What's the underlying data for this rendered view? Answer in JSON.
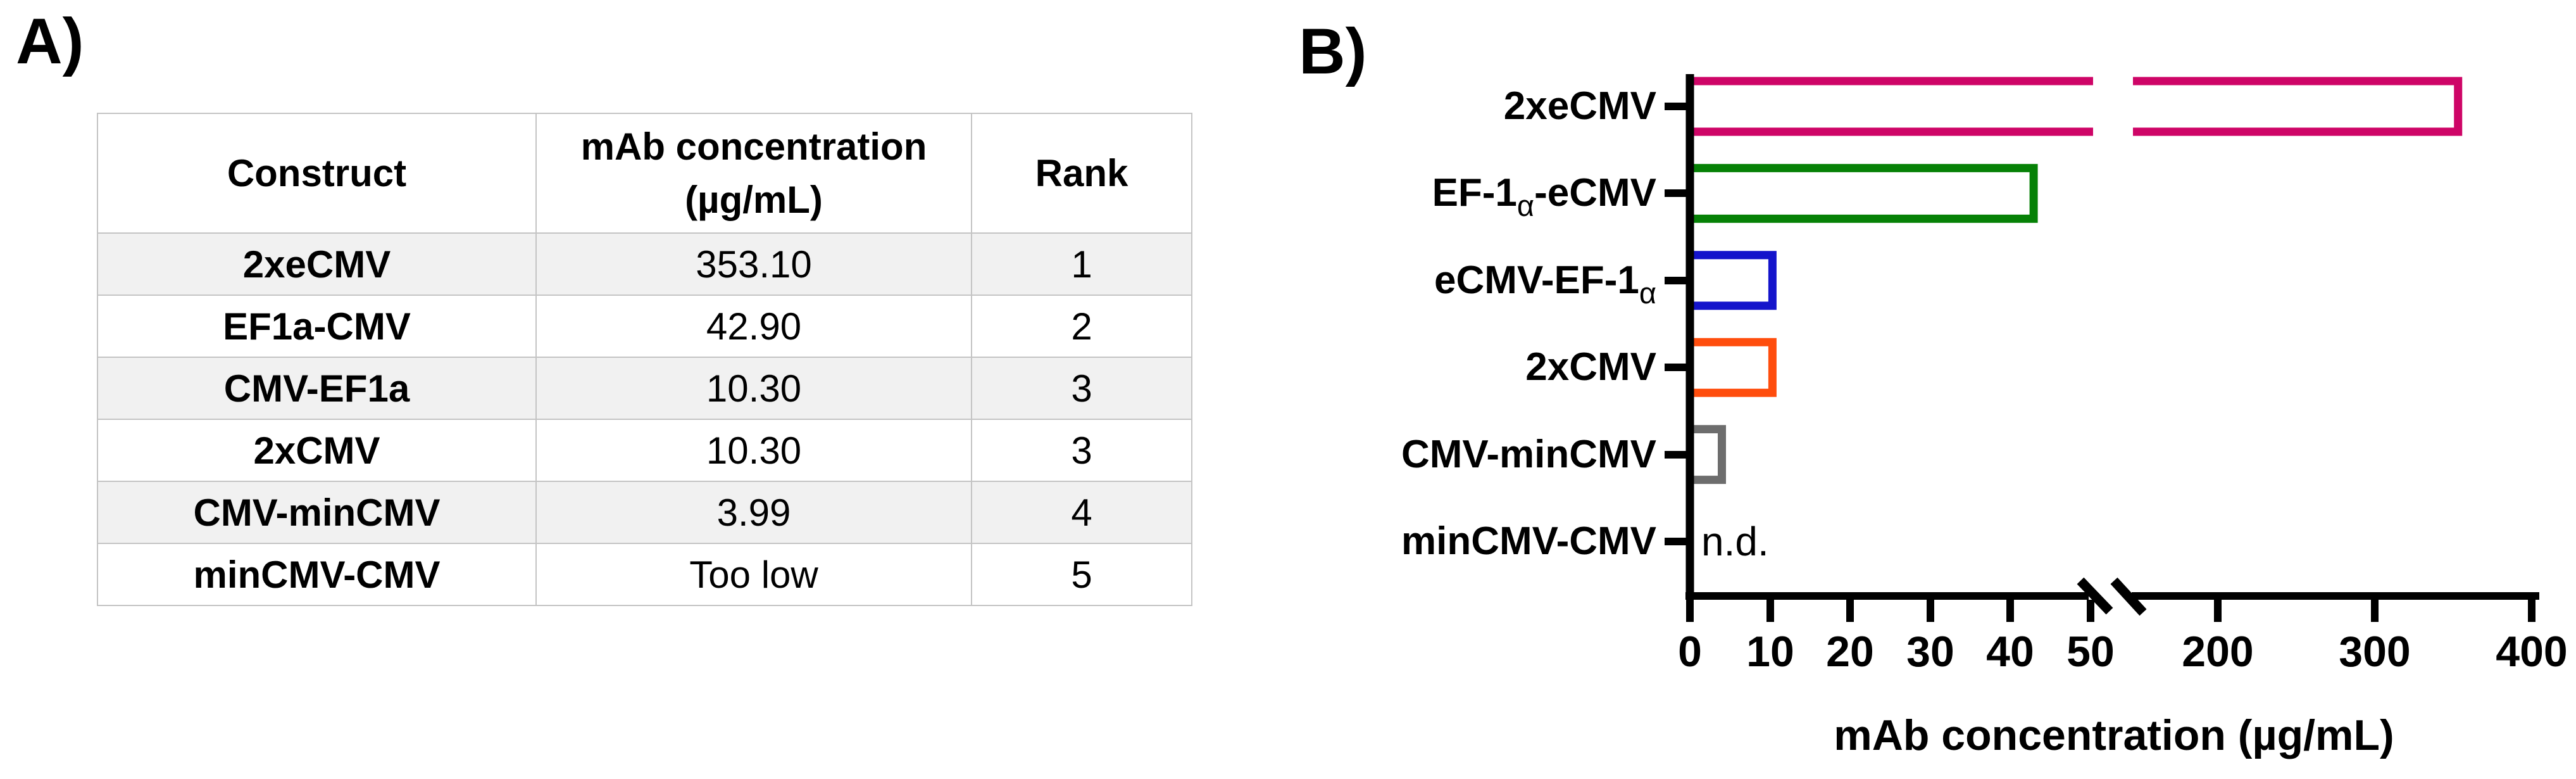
{
  "panel_a": {
    "label": "A)",
    "table": {
      "headers": {
        "construct": "Construct",
        "concentration_line1": "mAb concentration",
        "concentration_line2": "(µg/mL)",
        "rank": "Rank"
      },
      "rows": [
        {
          "construct": "2xeCMV",
          "concentration": "353.10",
          "rank": "1"
        },
        {
          "construct": "EF1a-CMV",
          "concentration": "42.90",
          "rank": "2"
        },
        {
          "construct": "CMV-EF1a",
          "concentration": "10.30",
          "rank": "3"
        },
        {
          "construct": "2xCMV",
          "concentration": "10.30",
          "rank": "3"
        },
        {
          "construct": "CMV-minCMV",
          "concentration": "3.99",
          "rank": "4"
        },
        {
          "construct": "minCMV-CMV",
          "concentration": "Too low",
          "rank": "5"
        }
      ]
    }
  },
  "panel_b": {
    "label": "B)"
  },
  "chart_data": {
    "type": "bar",
    "orientation": "horizontal",
    "title": "",
    "xlabel": "mAb concentration (µg/mL)",
    "ylabel": "",
    "categories": [
      {
        "pre": "2xeCMV",
        "alpha": "",
        "post": ""
      },
      {
        "pre": "EF-1",
        "alpha": "α",
        "post": "-eCMV"
      },
      {
        "pre": "eCMV-EF-1",
        "alpha": "α",
        "post": ""
      },
      {
        "pre": "2xCMV",
        "alpha": "",
        "post": ""
      },
      {
        "pre": "CMV-minCMV",
        "alpha": "",
        "post": ""
      },
      {
        "pre": "minCMV-CMV",
        "alpha": "",
        "post": ""
      }
    ],
    "values": [
      353.1,
      42.9,
      10.3,
      10.3,
      3.99,
      null
    ],
    "nd_label": "n.d.",
    "bar_colors": [
      "#CE0567",
      "#068106",
      "#1414CB",
      "#FF4D0D",
      "#6D6D6D",
      ""
    ],
    "bar_fill": "none",
    "x_ticks": [
      0,
      10,
      20,
      30,
      40,
      50,
      200,
      300,
      400
    ],
    "x_tick_labels": [
      "0",
      "10",
      "20",
      "30",
      "40",
      "50",
      "200",
      "300",
      "400"
    ],
    "xlim": [
      0,
      400
    ],
    "axis_break": {
      "between": [
        50,
        200
      ]
    },
    "grid": false,
    "legend": false
  }
}
